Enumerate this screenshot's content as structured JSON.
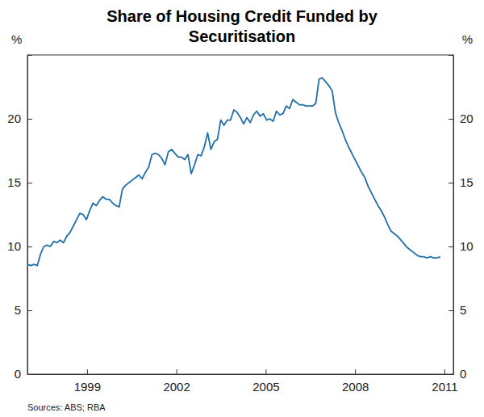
{
  "chart_data": {
    "type": "line",
    "title": "Share of Housing Credit Funded by Securitisation",
    "ylabel": "%",
    "source": "Sources: ABS; RBA",
    "color": "#1f6fa8",
    "grid": false,
    "xlim": [
      1997.0,
      2011.3
    ],
    "xticks": [
      1999,
      2002,
      2005,
      2008,
      2011
    ],
    "ylim": [
      0,
      25
    ],
    "yticks": [
      0,
      5,
      10,
      15,
      20
    ],
    "x": [
      1997.0,
      1997.11,
      1997.22,
      1997.33,
      1997.44,
      1997.55,
      1997.66,
      1997.77,
      1997.88,
      1997.99,
      1998.1,
      1998.21,
      1998.32,
      1998.43,
      1998.54,
      1998.65,
      1998.76,
      1998.87,
      1998.98,
      1999.09,
      1999.2,
      1999.31,
      1999.42,
      1999.53,
      1999.64,
      1999.75,
      1999.86,
      1999.97,
      2000.08,
      2000.19,
      2000.3,
      2000.41,
      2000.52,
      2000.63,
      2000.74,
      2000.85,
      2000.96,
      2001.07,
      2001.18,
      2001.29,
      2001.4,
      2001.51,
      2001.62,
      2001.73,
      2001.84,
      2001.95,
      2002.06,
      2002.17,
      2002.28,
      2002.39,
      2002.5,
      2002.61,
      2002.72,
      2002.83,
      2002.94,
      2003.05,
      2003.16,
      2003.27,
      2003.38,
      2003.49,
      2003.6,
      2003.71,
      2003.82,
      2003.93,
      2004.04,
      2004.15,
      2004.26,
      2004.37,
      2004.48,
      2004.59,
      2004.7,
      2004.81,
      2004.92,
      2005.03,
      2005.14,
      2005.25,
      2005.36,
      2005.47,
      2005.58,
      2005.69,
      2005.8,
      2005.91,
      2006.02,
      2006.13,
      2006.24,
      2006.35,
      2006.46,
      2006.57,
      2006.68,
      2006.79,
      2006.9,
      2007.01,
      2007.12,
      2007.23,
      2007.34,
      2007.45,
      2007.56,
      2007.67,
      2007.78,
      2007.89,
      2008.0,
      2008.11,
      2008.22,
      2008.33,
      2008.44,
      2008.55,
      2008.66,
      2008.77,
      2008.88,
      2008.99,
      2009.1,
      2009.21,
      2009.32,
      2009.43,
      2009.54,
      2009.65,
      2009.76,
      2009.87,
      2009.98,
      2010.09,
      2010.2,
      2010.31,
      2010.42,
      2010.53,
      2010.64,
      2010.75,
      2010.86
    ],
    "values": [
      8.6,
      8.5,
      8.6,
      8.5,
      9.4,
      10.0,
      10.1,
      10.0,
      10.4,
      10.3,
      10.5,
      10.3,
      10.8,
      11.1,
      11.6,
      12.1,
      12.6,
      12.5,
      12.1,
      12.8,
      13.4,
      13.2,
      13.6,
      13.9,
      13.7,
      13.7,
      13.4,
      13.2,
      13.1,
      14.5,
      14.8,
      15.0,
      15.2,
      15.4,
      15.6,
      15.3,
      15.8,
      16.2,
      17.2,
      17.3,
      17.2,
      16.9,
      16.4,
      17.4,
      17.6,
      17.3,
      17.0,
      17.0,
      16.8,
      17.2,
      15.7,
      16.4,
      17.2,
      17.1,
      17.8,
      18.9,
      17.6,
      18.2,
      18.4,
      19.9,
      19.5,
      19.9,
      19.9,
      20.7,
      20.5,
      20.1,
      19.6,
      20.1,
      19.7,
      20.3,
      20.6,
      20.2,
      20.4,
      19.9,
      20.0,
      19.8,
      20.6,
      20.3,
      20.4,
      21.0,
      20.8,
      21.5,
      21.3,
      21.1,
      21.1,
      21.0,
      21.0,
      21.0,
      21.2,
      23.1,
      23.2,
      22.9,
      22.6,
      22.2,
      20.5,
      19.7,
      19.1,
      18.4,
      17.8,
      17.3,
      16.8,
      16.3,
      15.8,
      15.4,
      14.7,
      14.2,
      13.7,
      13.2,
      12.8,
      12.3,
      11.7,
      11.2,
      11.0,
      10.8,
      10.5,
      10.2,
      9.9,
      9.7,
      9.5,
      9.3,
      9.2,
      9.2,
      9.1,
      9.2,
      9.1,
      9.1,
      9.2
    ]
  }
}
